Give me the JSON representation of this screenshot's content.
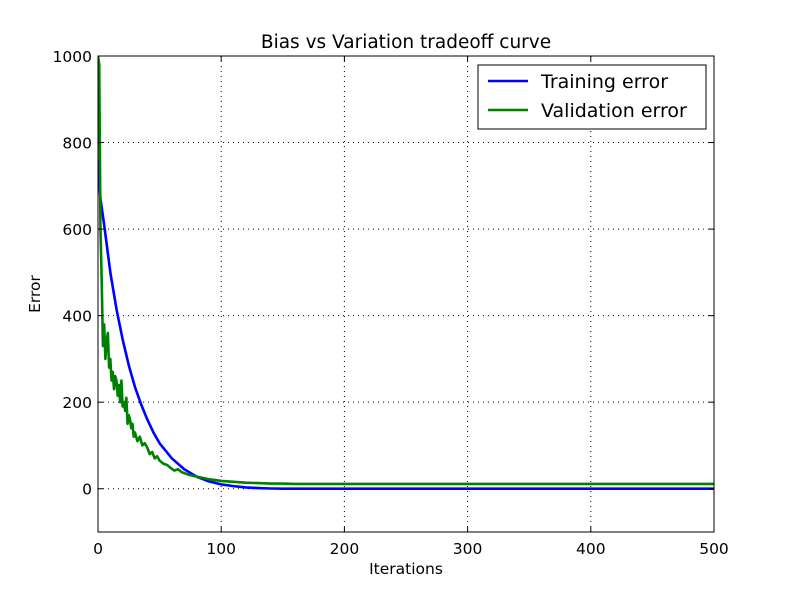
{
  "chart_data": {
    "type": "line",
    "title": "Bias vs Variation tradeoff curve",
    "xlabel": "Iterations",
    "ylabel": "Error",
    "xlim": [
      0,
      500
    ],
    "ylim": [
      -100,
      1000
    ],
    "xticks": [
      0,
      100,
      200,
      300,
      400,
      500
    ],
    "yticks": [
      0,
      200,
      400,
      600,
      800,
      1000
    ],
    "grid": true,
    "legend_position": "top-right",
    "series": [
      {
        "name": "Training error",
        "color": "#0000ff",
        "x": [
          0,
          2,
          5,
          10,
          15,
          20,
          25,
          30,
          35,
          40,
          45,
          50,
          60,
          70,
          80,
          90,
          100,
          110,
          120,
          130,
          140,
          150,
          160,
          175,
          200,
          250,
          300,
          350,
          400,
          450,
          500
        ],
        "y": [
          760,
          670,
          610,
          500,
          415,
          345,
          285,
          235,
          195,
          160,
          130,
          105,
          70,
          45,
          28,
          17,
          10,
          6,
          3,
          1.5,
          0.5,
          0,
          0,
          0,
          0,
          0,
          0,
          0,
          0,
          0,
          0
        ]
      },
      {
        "name": "Validation error",
        "color": "#008000",
        "x": [
          0,
          1,
          2,
          3,
          4,
          5,
          6,
          7,
          8,
          9,
          10,
          11,
          12,
          13,
          14,
          15,
          16,
          17,
          18,
          19,
          20,
          21,
          22,
          23,
          24,
          25,
          26,
          27,
          28,
          29,
          30,
          32,
          34,
          36,
          38,
          40,
          42,
          44,
          46,
          48,
          50,
          53,
          56,
          59,
          62,
          65,
          68,
          71,
          74,
          77,
          80,
          85,
          90,
          95,
          100,
          110,
          120,
          130,
          140,
          150,
          160,
          170,
          180,
          190,
          200,
          220,
          240,
          260,
          280,
          300,
          320,
          340,
          360,
          380,
          400,
          420,
          440,
          460,
          480,
          500
        ],
        "y": [
          1000,
          980,
          600,
          480,
          330,
          380,
          300,
          340,
          360,
          280,
          300,
          250,
          270,
          230,
          260,
          250,
          215,
          240,
          200,
          250,
          190,
          200,
          180,
          210,
          150,
          170,
          160,
          140,
          150,
          120,
          130,
          110,
          120,
          100,
          105,
          95,
          80,
          85,
          70,
          75,
          65,
          58,
          55,
          48,
          42,
          45,
          38,
          35,
          32,
          30,
          28,
          25,
          22,
          20,
          18,
          16,
          14,
          13,
          12,
          12,
          11,
          11,
          11,
          11,
          11,
          11,
          11,
          11,
          11,
          11,
          11,
          11,
          11,
          11,
          11,
          11,
          11,
          11,
          11,
          11
        ]
      }
    ]
  }
}
